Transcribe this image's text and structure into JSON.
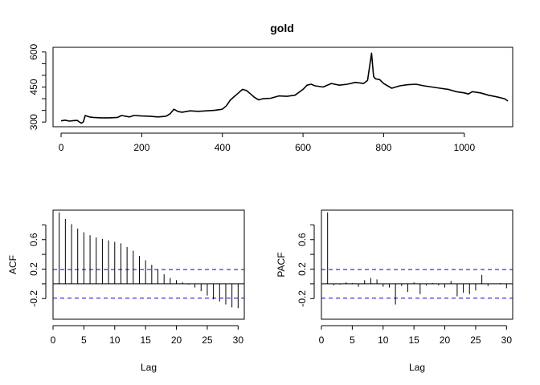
{
  "chart_data": [
    {
      "type": "line",
      "title": "gold",
      "xlabel": "",
      "ylabel": "",
      "xlim": [
        -20,
        1120
      ],
      "ylim": [
        280,
        620
      ],
      "xticks": [
        0,
        200,
        400,
        600,
        800,
        1000
      ],
      "yticks": [
        300,
        450,
        600
      ],
      "yticks_minor": [
        350,
        400,
        500,
        550
      ],
      "grid": false,
      "series_color": "#000000",
      "x": [
        0,
        10,
        20,
        30,
        40,
        50,
        55,
        60,
        70,
        80,
        100,
        120,
        140,
        150,
        170,
        180,
        200,
        220,
        240,
        260,
        270,
        280,
        290,
        300,
        320,
        340,
        360,
        380,
        400,
        410,
        420,
        440,
        450,
        460,
        470,
        480,
        490,
        500,
        520,
        540,
        560,
        580,
        600,
        610,
        620,
        630,
        650,
        670,
        690,
        710,
        730,
        750,
        760,
        770,
        775,
        780,
        790,
        800,
        820,
        840,
        860,
        880,
        900,
        920,
        940,
        960,
        980,
        1000,
        1010,
        1020,
        1040,
        1060,
        1080,
        1100,
        1108
      ],
      "y": [
        305,
        308,
        304,
        306,
        307,
        295,
        300,
        328,
        322,
        320,
        318,
        318,
        320,
        328,
        322,
        328,
        326,
        325,
        322,
        325,
        335,
        355,
        345,
        342,
        348,
        346,
        348,
        350,
        355,
        370,
        395,
        425,
        440,
        435,
        420,
        405,
        395,
        400,
        402,
        412,
        410,
        415,
        440,
        458,
        462,
        455,
        450,
        465,
        458,
        462,
        470,
        465,
        478,
        595,
        495,
        485,
        482,
        465,
        445,
        455,
        460,
        462,
        455,
        450,
        445,
        440,
        430,
        425,
        420,
        430,
        425,
        415,
        408,
        400,
        390
      ]
    },
    {
      "type": "bar",
      "title": "",
      "xlabel": "Lag",
      "ylabel": "ACF",
      "xlim": [
        0,
        31
      ],
      "ylim": [
        -0.48,
        1.0
      ],
      "xticks": [
        0,
        5,
        10,
        15,
        20,
        25,
        30
      ],
      "yticks": [
        -0.2,
        0.2,
        0.6
      ],
      "confidence_band": 0.195,
      "confidence_color": "#0000cd",
      "lags": [
        1,
        2,
        3,
        4,
        5,
        6,
        7,
        8,
        9,
        10,
        11,
        12,
        13,
        14,
        15,
        16,
        17,
        18,
        19,
        20,
        21,
        22,
        23,
        24,
        25,
        26,
        27,
        28,
        29,
        30
      ],
      "values": [
        0.97,
        0.88,
        0.81,
        0.75,
        0.7,
        0.66,
        0.63,
        0.61,
        0.59,
        0.57,
        0.55,
        0.5,
        0.45,
        0.38,
        0.32,
        0.26,
        0.2,
        0.13,
        0.08,
        0.05,
        0.02,
        -0.01,
        -0.05,
        -0.1,
        -0.16,
        -0.21,
        -0.24,
        -0.28,
        -0.32,
        -0.33
      ]
    },
    {
      "type": "bar",
      "title": "",
      "xlabel": "Lag",
      "ylabel": "PACF",
      "xlim": [
        0,
        31
      ],
      "ylim": [
        -0.48,
        1.0
      ],
      "xticks": [
        0,
        5,
        10,
        15,
        20,
        25,
        30
      ],
      "yticks": [
        -0.2,
        0.2,
        0.6
      ],
      "confidence_band": 0.195,
      "confidence_color": "#0000cd",
      "lags": [
        1,
        2,
        3,
        4,
        5,
        6,
        7,
        8,
        9,
        10,
        11,
        12,
        13,
        14,
        15,
        16,
        17,
        18,
        19,
        20,
        21,
        22,
        23,
        24,
        25,
        26,
        27,
        28,
        29,
        30
      ],
      "values": [
        0.97,
        -0.02,
        -0.01,
        0.02,
        0.01,
        -0.04,
        0.05,
        0.08,
        0.06,
        -0.04,
        -0.05,
        -0.28,
        -0.03,
        -0.11,
        0.02,
        -0.14,
        -0.02,
        0.01,
        -0.02,
        -0.05,
        0.04,
        -0.17,
        -0.12,
        -0.14,
        -0.09,
        0.12,
        -0.03,
        0.0,
        0.01,
        -0.06
      ]
    }
  ]
}
